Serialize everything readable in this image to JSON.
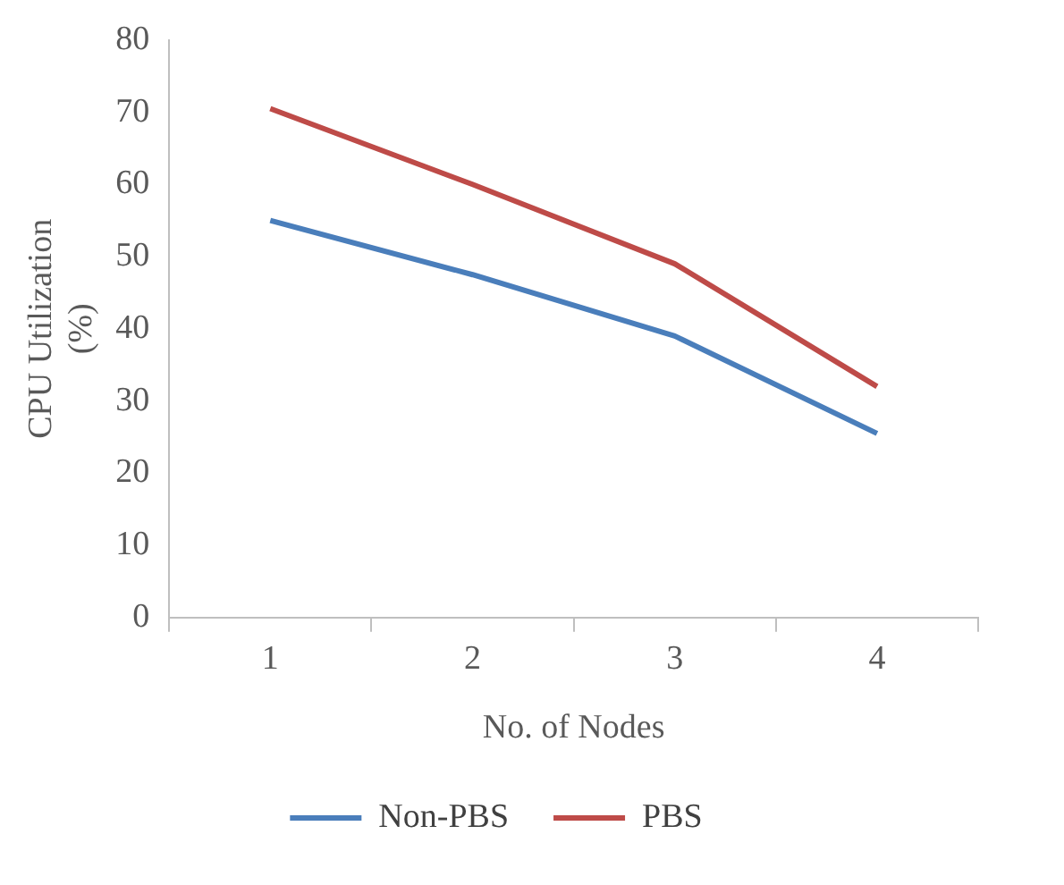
{
  "chart_data": {
    "type": "line",
    "xlabel": "No. of Nodes",
    "ylabel": "CPU Utilization (%)",
    "categories": [
      "1",
      "2",
      "3",
      "4"
    ],
    "series": [
      {
        "name": "Non-PBS",
        "color": "#4a7ebb",
        "values": [
          55,
          47.5,
          39,
          25.5
        ]
      },
      {
        "name": "PBS",
        "color": "#be4b48",
        "values": [
          70.5,
          60,
          49,
          32
        ]
      }
    ],
    "ylim": [
      0,
      80
    ],
    "yticks": [
      0,
      10,
      20,
      30,
      40,
      50,
      60,
      70,
      80
    ],
    "grid": false,
    "legend": "bottom",
    "marker": "none",
    "line_style": "solid"
  }
}
